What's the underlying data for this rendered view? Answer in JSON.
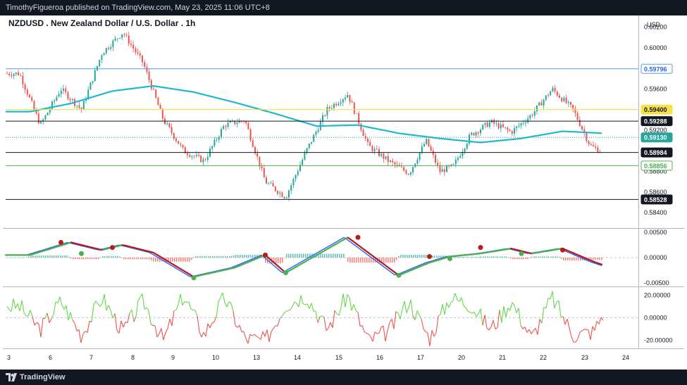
{
  "header": {
    "publisher_text": "TimothyFigueroa published on TradingView.com, May 23, 2025 11:06 UTC+8"
  },
  "footer": {
    "brand": "TradingView"
  },
  "chart": {
    "title": "NZDUSD . New Zealand Dollar / U.S. Dollar . 1h",
    "currency": "USD"
  },
  "colors": {
    "candle_up": "#26a69a",
    "candle_down": "#ef5350",
    "moving_average": "#20b7d0",
    "line_blue": "#5b9bd5",
    "line_yellow": "#f5e24a",
    "line_black": "#131722",
    "line_green": "#4caf50",
    "osc_fast": "#2962ff",
    "osc_up": "#4caf50",
    "osc_down": "#b71c1c",
    "rsi_up": "#66d64a",
    "rsi_down": "#ef5350"
  },
  "chart_data": [
    {
      "type": "candlestick",
      "title": "NZDUSD . New Zealand Dollar / U.S. Dollar . 1h",
      "y_axis_unit": "USD",
      "x_tick_labels": [
        "3",
        "6",
        "7",
        "8",
        "9",
        "10",
        "13",
        "14",
        "15",
        "16",
        "17",
        "20",
        "21",
        "22",
        "23",
        "24"
      ],
      "y_tick_labels": [
        "0.60200",
        "0.60000",
        "0.59600",
        "0.59200",
        "0.58800",
        "0.58600",
        "0.58400"
      ],
      "ylim": [
        0.5825,
        0.603
      ],
      "close_path_keypoints": [
        {
          "x": "3",
          "y": 0.5975
        },
        {
          "x": "3",
          "y": 0.5925
        },
        {
          "x": "6",
          "y": 0.596
        },
        {
          "x": "6",
          "y": 0.594
        },
        {
          "x": "7",
          "y": 0.5995
        },
        {
          "x": "7",
          "y": 0.6015
        },
        {
          "x": "8",
          "y": 0.5985
        },
        {
          "x": "8",
          "y": 0.593
        },
        {
          "x": "9",
          "y": 0.59
        },
        {
          "x": "9",
          "y": 0.589
        },
        {
          "x": "10",
          "y": 0.5925
        },
        {
          "x": "10",
          "y": 0.593
        },
        {
          "x": "13",
          "y": 0.587
        },
        {
          "x": "13",
          "y": 0.5855
        },
        {
          "x": "14",
          "y": 0.59
        },
        {
          "x": "14",
          "y": 0.594
        },
        {
          "x": "15",
          "y": 0.5955
        },
        {
          "x": "15",
          "y": 0.5905
        },
        {
          "x": "16",
          "y": 0.589
        },
        {
          "x": "16",
          "y": 0.5878
        },
        {
          "x": "17",
          "y": 0.591
        },
        {
          "x": "17",
          "y": 0.588
        },
        {
          "x": "17",
          "y": 0.5885
        },
        {
          "x": "20",
          "y": 0.5915
        },
        {
          "x": "20",
          "y": 0.5928
        },
        {
          "x": "21",
          "y": 0.5918
        },
        {
          "x": "21",
          "y": 0.5935
        },
        {
          "x": "22",
          "y": 0.596
        },
        {
          "x": "22",
          "y": 0.594
        },
        {
          "x": "23",
          "y": 0.5905
        },
        {
          "x": "23",
          "y": 0.5898
        },
        {
          "x": "23",
          "y": 0.5913
        }
      ],
      "moving_average_keypoints": [
        {
          "x": "3",
          "y": 0.5938
        },
        {
          "x": "6",
          "y": 0.5946
        },
        {
          "x": "7",
          "y": 0.5958
        },
        {
          "x": "8",
          "y": 0.5963
        },
        {
          "x": "9",
          "y": 0.5957
        },
        {
          "x": "10",
          "y": 0.5947
        },
        {
          "x": "13",
          "y": 0.5936
        },
        {
          "x": "14",
          "y": 0.5924
        },
        {
          "x": "15",
          "y": 0.5925
        },
        {
          "x": "16",
          "y": 0.5917
        },
        {
          "x": "17",
          "y": 0.5912
        },
        {
          "x": "20",
          "y": 0.5908
        },
        {
          "x": "21",
          "y": 0.5912
        },
        {
          "x": "22",
          "y": 0.5919
        },
        {
          "x": "23",
          "y": 0.5917
        }
      ],
      "horizontal_levels": [
        {
          "value": "0.59796",
          "price": 0.59796,
          "style": "blue"
        },
        {
          "value": "0.59400",
          "price": 0.594,
          "style": "yellow"
        },
        {
          "value": "0.59288",
          "price": 0.59288,
          "style": "black"
        },
        {
          "value": "0.59130",
          "price": 0.5913,
          "style": "current"
        },
        {
          "value": "0.58984",
          "price": 0.58984,
          "style": "black"
        },
        {
          "value": "0.58856",
          "price": 0.58856,
          "style": "green"
        },
        {
          "value": "0.58528",
          "price": 0.58528,
          "style": "black"
        }
      ]
    },
    {
      "type": "line",
      "panel": "oscillator",
      "y_tick_labels": [
        "0.00500",
        "0.00000",
        "-0.00500"
      ],
      "ylim": [
        -0.0057,
        0.0057
      ],
      "slow_keypoints": [
        {
          "x": "3",
          "y": 0.0005
        },
        {
          "x": "6",
          "y": 0.003
        },
        {
          "x": "7",
          "y": 0.0015
        },
        {
          "x": "7",
          "y": 0.0025
        },
        {
          "x": "8",
          "y": 0.001
        },
        {
          "x": "9",
          "y": -0.0038
        },
        {
          "x": "10",
          "y": -0.002
        },
        {
          "x": "13",
          "y": 0.0005
        },
        {
          "x": "13",
          "y": -0.003
        },
        {
          "x": "14",
          "y": 0.0005
        },
        {
          "x": "15",
          "y": 0.004
        },
        {
          "x": "15",
          "y": 0.001
        },
        {
          "x": "16",
          "y": -0.0035
        },
        {
          "x": "17",
          "y": -0.001
        },
        {
          "x": "17",
          "y": 0.0002
        },
        {
          "x": "20",
          "y": 0.0008
        },
        {
          "x": "21",
          "y": 0.0018
        },
        {
          "x": "21",
          "y": 0.0008
        },
        {
          "x": "22",
          "y": 0.0018
        },
        {
          "x": "23",
          "y": -0.0008
        },
        {
          "x": "23",
          "y": -0.0022
        }
      ],
      "signal_markers": [
        {
          "x": "6",
          "y": 0.003,
          "kind": "down"
        },
        {
          "x": "6",
          "y": 0.0008,
          "kind": "up"
        },
        {
          "x": "7",
          "y": 0.002,
          "kind": "down"
        },
        {
          "x": "9",
          "y": -0.004,
          "kind": "up"
        },
        {
          "x": "13",
          "y": 0.0005,
          "kind": "down"
        },
        {
          "x": "13",
          "y": -0.003,
          "kind": "up"
        },
        {
          "x": "15",
          "y": 0.004,
          "kind": "down"
        },
        {
          "x": "16",
          "y": -0.0035,
          "kind": "up"
        },
        {
          "x": "17",
          "y": 0.0002,
          "kind": "down"
        },
        {
          "x": "17",
          "y": -0.0002,
          "kind": "up"
        },
        {
          "x": "20",
          "y": 0.002,
          "kind": "down"
        },
        {
          "x": "21",
          "y": 0.0008,
          "kind": "up"
        },
        {
          "x": "22",
          "y": 0.0015,
          "kind": "down"
        }
      ]
    },
    {
      "type": "line",
      "panel": "momentum",
      "y_tick_labels": [
        "20.00000",
        "0.00000",
        "-20.00000"
      ],
      "ylim": [
        -27,
        27
      ],
      "keypoints": [
        {
          "x": "3",
          "y": 10
        },
        {
          "x": "3",
          "y": -10
        },
        {
          "x": "6",
          "y": 15
        },
        {
          "x": "6",
          "y": -15
        },
        {
          "x": "7",
          "y": 18
        },
        {
          "x": "7",
          "y": -12
        },
        {
          "x": "8",
          "y": 15
        },
        {
          "x": "8",
          "y": -20
        },
        {
          "x": "9",
          "y": 20
        },
        {
          "x": "9",
          "y": -15
        },
        {
          "x": "10",
          "y": 18
        },
        {
          "x": "10",
          "y": -18
        },
        {
          "x": "13",
          "y": -20
        },
        {
          "x": "13",
          "y": 12
        },
        {
          "x": "14",
          "y": 20
        },
        {
          "x": "14",
          "y": -10
        },
        {
          "x": "15",
          "y": 20
        },
        {
          "x": "15",
          "y": -20
        },
        {
          "x": "16",
          "y": -12
        },
        {
          "x": "16",
          "y": 15
        },
        {
          "x": "17",
          "y": -18
        },
        {
          "x": "17",
          "y": 18
        },
        {
          "x": "20",
          "y": 12
        },
        {
          "x": "20",
          "y": -10
        },
        {
          "x": "21",
          "y": 15
        },
        {
          "x": "21",
          "y": -18
        },
        {
          "x": "22",
          "y": 18
        },
        {
          "x": "22",
          "y": -15
        },
        {
          "x": "23",
          "y": -12
        },
        {
          "x": "23",
          "y": 22
        }
      ]
    }
  ]
}
